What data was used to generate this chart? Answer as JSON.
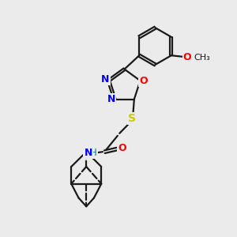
{
  "bg_color": "#ebebeb",
  "bond_color": "#1a1a1a",
  "n_color": "#0000ff",
  "o_color": "#ff0000",
  "s_color": "#cccc00",
  "nh_color": "#008080",
  "figsize": [
    3.0,
    3.0
  ],
  "dpi": 100,
  "xlim": [
    0,
    10
  ],
  "ylim": [
    0,
    10
  ]
}
